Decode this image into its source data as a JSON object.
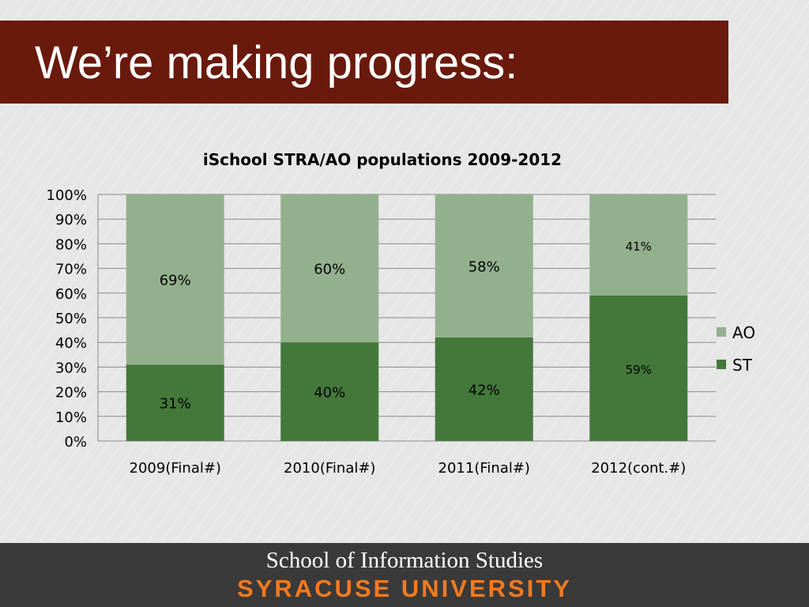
{
  "slide": {
    "title": "We’re making progress:"
  },
  "footer": {
    "school": "School of Information Studies",
    "university": "SYRACUSE UNIVERSITY"
  },
  "chart_data": {
    "type": "bar",
    "stacked": true,
    "title": "iSchool STRA/AO populations 2009-2012",
    "xlabel": "",
    "ylabel": "",
    "categories": [
      "2009(Final#)",
      "2010(Final#)",
      "2011(Final#)",
      "2012(cont.#)"
    ],
    "series": [
      {
        "name": "ST",
        "values": [
          31,
          40,
          42,
          59
        ],
        "labels": [
          "31%",
          "40%",
          "42%",
          "59%"
        ],
        "color": "#44783a"
      },
      {
        "name": "AO",
        "values": [
          69,
          60,
          58,
          41
        ],
        "labels": [
          "69%",
          "60%",
          "58%",
          "41%"
        ],
        "color": "#93b08d"
      }
    ],
    "ylim": [
      0,
      100
    ],
    "y_ticks": [
      "0%",
      "10%",
      "20%",
      "30%",
      "40%",
      "50%",
      "60%",
      "70%",
      "80%",
      "90%",
      "100%"
    ],
    "legend_order": [
      "AO",
      "ST"
    ],
    "legend_position": "right",
    "grid": true
  }
}
